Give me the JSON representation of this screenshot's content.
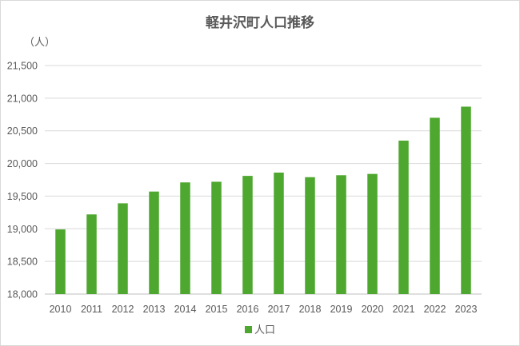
{
  "chart_data": {
    "type": "bar",
    "title": "軽井沢町人口推移",
    "unit_label": "（人）",
    "categories": [
      "2010",
      "2011",
      "2012",
      "2013",
      "2014",
      "2015",
      "2016",
      "2017",
      "2018",
      "2019",
      "2020",
      "2021",
      "2022",
      "2023"
    ],
    "series": [
      {
        "name": "人口",
        "values": [
          18990,
          19220,
          19390,
          19570,
          19710,
          19720,
          19810,
          19860,
          19790,
          19820,
          19840,
          20350,
          20700,
          20870
        ]
      }
    ],
    "ylim": [
      18000,
      21500
    ],
    "y_ticks": [
      "18,000",
      "18,500",
      "19,000",
      "19,500",
      "20,000",
      "20,500",
      "21,000",
      "21,500"
    ],
    "grid": true,
    "legend_position": "bottom",
    "colors": {
      "bar": "#4ea72e",
      "grid": "#d9d9d9",
      "text": "#595959"
    }
  }
}
